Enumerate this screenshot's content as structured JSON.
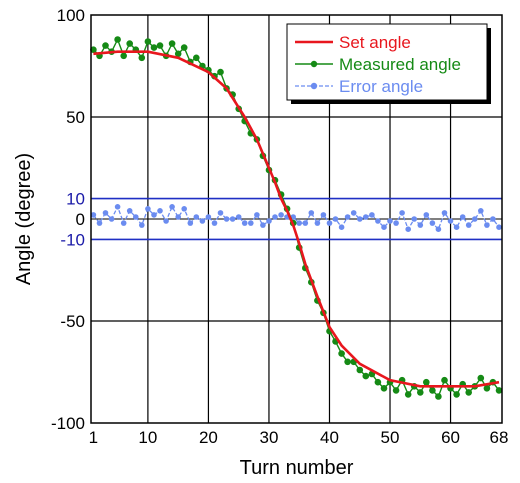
{
  "chart_data": {
    "type": "line",
    "xlabel": "Turn number",
    "ylabel": "Angle (degree)",
    "xlim": [
      0.6,
      68.5
    ],
    "ylim": [
      -100,
      100
    ],
    "x_ticks": [
      1,
      10,
      20,
      30,
      40,
      50,
      60,
      68
    ],
    "y_ticks": [
      100,
      50,
      0,
      -50,
      -100
    ],
    "y_ticks_blue": [
      10,
      0,
      -10
    ],
    "error_band_lines": [
      10,
      -10
    ],
    "vertical_gridlines": [
      10,
      20,
      30,
      40,
      50,
      60
    ],
    "horizontal_gridlines": [
      50,
      -50
    ],
    "grid": true,
    "legend_position": "top-right",
    "series": [
      {
        "name": "Set angle",
        "color": "#e8171e",
        "style": "solid",
        "x": [
          1,
          5,
          10,
          15,
          20,
          23,
          26,
          28,
          30,
          31,
          32,
          33,
          34,
          35,
          36,
          38,
          40,
          42,
          45,
          50,
          55,
          60,
          64,
          68
        ],
        "y": [
          81,
          82,
          82,
          79,
          72,
          64,
          50,
          39,
          25,
          18,
          10,
          4,
          -3,
          -12,
          -22,
          -38,
          -53,
          -62,
          -71,
          -79,
          -82,
          -82,
          -82,
          -80
        ]
      },
      {
        "name": "Measured angle",
        "color": "#158a15",
        "style": "solid-with-dots",
        "x": [
          1,
          2,
          3,
          4,
          5,
          6,
          7,
          8,
          9,
          10,
          11,
          12,
          13,
          14,
          15,
          16,
          17,
          18,
          19,
          20,
          21,
          22,
          23,
          24,
          25,
          26,
          27,
          28,
          29,
          30,
          31,
          32,
          33,
          34,
          35,
          36,
          37,
          38,
          39,
          40,
          41,
          42,
          43,
          44,
          45,
          46,
          47,
          48,
          49,
          50,
          51,
          52,
          53,
          54,
          55,
          56,
          57,
          58,
          59,
          60,
          61,
          62,
          63,
          64,
          65,
          66,
          67,
          68
        ],
        "y": [
          83,
          80,
          85,
          82,
          88,
          80,
          86,
          83,
          79,
          87,
          84,
          85,
          80,
          86,
          81,
          84,
          77,
          79,
          75,
          73,
          70,
          72,
          64,
          61,
          54,
          48,
          42,
          39,
          31,
          24,
          19,
          12,
          5,
          -2,
          -14,
          -24,
          -31,
          -40,
          -46,
          -55,
          -60,
          -66,
          -70,
          -70,
          -74,
          -77,
          -76,
          -80,
          -83,
          -80,
          -84,
          -79,
          -86,
          -82,
          -85,
          -80,
          -84,
          -87,
          -79,
          -83,
          -86,
          -81,
          -85,
          -82,
          -78,
          -83,
          -80,
          -84
        ]
      },
      {
        "name": "Error angle",
        "color": "#6b8cf0",
        "style": "dashed-with-dots",
        "x": [
          1,
          2,
          3,
          4,
          5,
          6,
          7,
          8,
          9,
          10,
          11,
          12,
          13,
          14,
          15,
          16,
          17,
          18,
          19,
          20,
          21,
          22,
          23,
          24,
          25,
          26,
          27,
          28,
          29,
          30,
          31,
          32,
          33,
          34,
          35,
          36,
          37,
          38,
          39,
          40,
          41,
          42,
          43,
          44,
          45,
          46,
          47,
          48,
          49,
          50,
          51,
          52,
          53,
          54,
          55,
          56,
          57,
          58,
          59,
          60,
          61,
          62,
          63,
          64,
          65,
          66,
          67,
          68
        ],
        "y": [
          2,
          -2,
          3,
          0,
          6,
          -2,
          4,
          1,
          -3,
          5,
          2,
          4,
          -1,
          6,
          1,
          5,
          -2,
          1,
          -1,
          1,
          -2,
          3,
          0,
          0,
          1,
          -2,
          -2,
          2,
          -3,
          -1,
          1,
          2,
          1,
          1,
          -2,
          -2,
          3,
          -2,
          2,
          -2,
          0,
          -4,
          1,
          3,
          0,
          1,
          2,
          -1,
          -4,
          -1,
          -2,
          3,
          -5,
          0,
          -3,
          2,
          -2,
          -5,
          3,
          -1,
          -4,
          1,
          -3,
          0,
          4,
          -3,
          0,
          -4
        ]
      }
    ]
  }
}
